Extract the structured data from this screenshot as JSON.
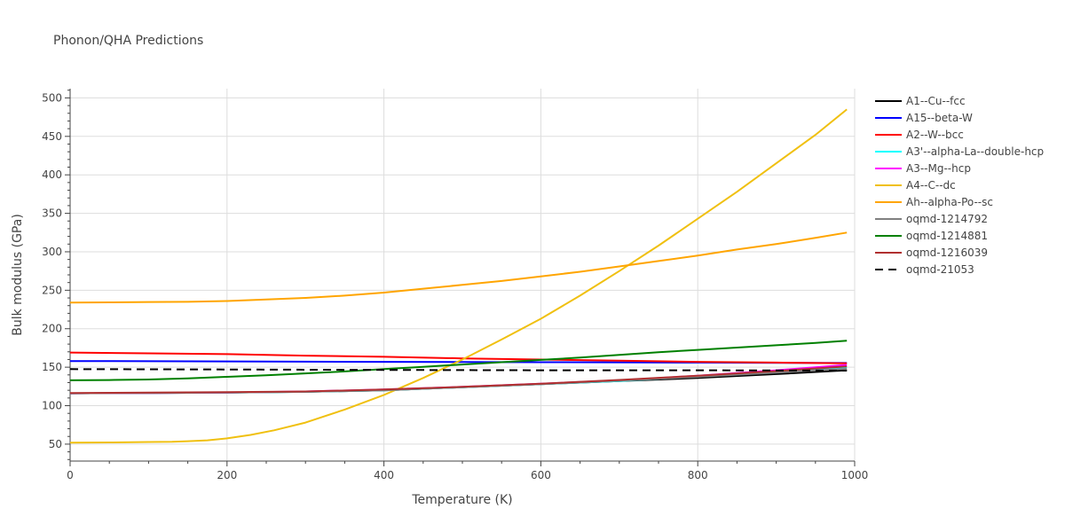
{
  "chart_data": {
    "type": "line",
    "title": "Phonon/QHA Predictions",
    "xlabel": "Temperature (K)",
    "ylabel": "Bulk modulus (GPa)",
    "xlim": [
      0,
      1000
    ],
    "ylim": [
      28,
      512
    ],
    "x_ticks": [
      0,
      200,
      400,
      600,
      800,
      1000
    ],
    "y_ticks": [
      50,
      100,
      150,
      200,
      250,
      300,
      350,
      400,
      450,
      500
    ],
    "grid": true,
    "legend_position": "right",
    "series": [
      {
        "name": "A1--Cu--fcc",
        "color": "#000000",
        "dash": "solid",
        "x": [
          0,
          100,
          200,
          300,
          400,
          500,
          600,
          700,
          800,
          900,
          990
        ],
        "y": [
          116,
          116.5,
          117,
          118,
          120,
          124,
          128,
          132,
          136,
          141,
          146
        ]
      },
      {
        "name": "A15--beta-W",
        "color": "#0000ff",
        "dash": "solid",
        "x": [
          0,
          200,
          400,
          600,
          800,
          990
        ],
        "y": [
          158,
          157.5,
          157,
          156.5,
          156,
          155.5
        ]
      },
      {
        "name": "A2--W--bcc",
        "color": "#ff0000",
        "dash": "solid",
        "x": [
          0,
          100,
          200,
          300,
          400,
          500,
          600,
          700,
          800,
          900,
          990
        ],
        "y": [
          169,
          168,
          167,
          165,
          163.5,
          161.5,
          160,
          158.5,
          157,
          156,
          155
        ]
      },
      {
        "name": "A3'--alpha-La--double-hcp",
        "color": "#00ffff",
        "dash": "solid",
        "x": [
          0,
          100,
          200,
          300,
          400,
          500,
          600,
          700,
          800,
          900,
          990
        ],
        "y": [
          116,
          116.5,
          117,
          118,
          120,
          124,
          128,
          132,
          138,
          144,
          150
        ]
      },
      {
        "name": "A3--Mg--hcp",
        "color": "#ff00ff",
        "dash": "solid",
        "x": [
          0,
          100,
          200,
          300,
          400,
          500,
          600,
          700,
          800,
          900,
          990
        ],
        "y": [
          116,
          116.5,
          117,
          118.5,
          121,
          124.5,
          128.5,
          133,
          139,
          146,
          153
        ]
      },
      {
        "name": "A4--C--dc",
        "color": "#f0c010",
        "dash": "solid",
        "x": [
          0,
          50,
          100,
          130,
          150,
          175,
          200,
          230,
          260,
          300,
          350,
          400,
          450,
          500,
          550,
          600,
          650,
          700,
          750,
          800,
          850,
          900,
          950,
          990
        ],
        "y": [
          52,
          52.2,
          52.8,
          53,
          53.8,
          55,
          57.5,
          62,
          68,
          78,
          95,
          114,
          136,
          160,
          186,
          213,
          243,
          275,
          308,
          343,
          378,
          415,
          452,
          485
        ]
      },
      {
        "name": "Ah--alpha-Po--sc",
        "color": "#ffa500",
        "dash": "solid",
        "x": [
          0,
          50,
          100,
          150,
          200,
          250,
          300,
          350,
          400,
          450,
          500,
          550,
          600,
          650,
          700,
          750,
          800,
          850,
          900,
          950,
          990
        ],
        "y": [
          234,
          234.3,
          234.7,
          235,
          236,
          238,
          240,
          243,
          247,
          252,
          257,
          262,
          268,
          274,
          281,
          288,
          295,
          303,
          310,
          318,
          325
        ]
      },
      {
        "name": "oqmd-1214792",
        "color": "#808080",
        "dash": "solid",
        "x": [
          0,
          100,
          200,
          300,
          400,
          500,
          600,
          700,
          800,
          900,
          990
        ],
        "y": [
          116,
          116.5,
          117,
          118,
          120,
          124,
          128,
          132.5,
          137.5,
          143,
          148
        ]
      },
      {
        "name": "oqmd-1214881",
        "color": "#008000",
        "dash": "solid",
        "x": [
          0,
          50,
          100,
          150,
          200,
          250,
          300,
          350,
          400,
          450,
          500,
          550,
          600,
          650,
          700,
          750,
          800,
          850,
          900,
          950,
          990
        ],
        "y": [
          133,
          133.3,
          134,
          135.5,
          137.5,
          139.5,
          142,
          144.5,
          147.5,
          150.5,
          153.5,
          156.5,
          159.5,
          162.5,
          166,
          169.5,
          172.5,
          175.5,
          178.5,
          181.5,
          184.5
        ]
      },
      {
        "name": "oqmd-1216039",
        "color": "#b03030",
        "dash": "solid",
        "x": [
          0,
          100,
          200,
          300,
          400,
          500,
          600,
          700,
          800,
          900,
          990
        ],
        "y": [
          116.5,
          117,
          117.5,
          118.5,
          121,
          124.5,
          128.5,
          133.5,
          139,
          145,
          151
        ]
      },
      {
        "name": "oqmd-21053",
        "color": "#000000",
        "dash": "dash",
        "x": [
          0,
          200,
          400,
          600,
          800,
          990
        ],
        "y": [
          147.5,
          147,
          146.5,
          146,
          146,
          145.5
        ]
      }
    ]
  }
}
